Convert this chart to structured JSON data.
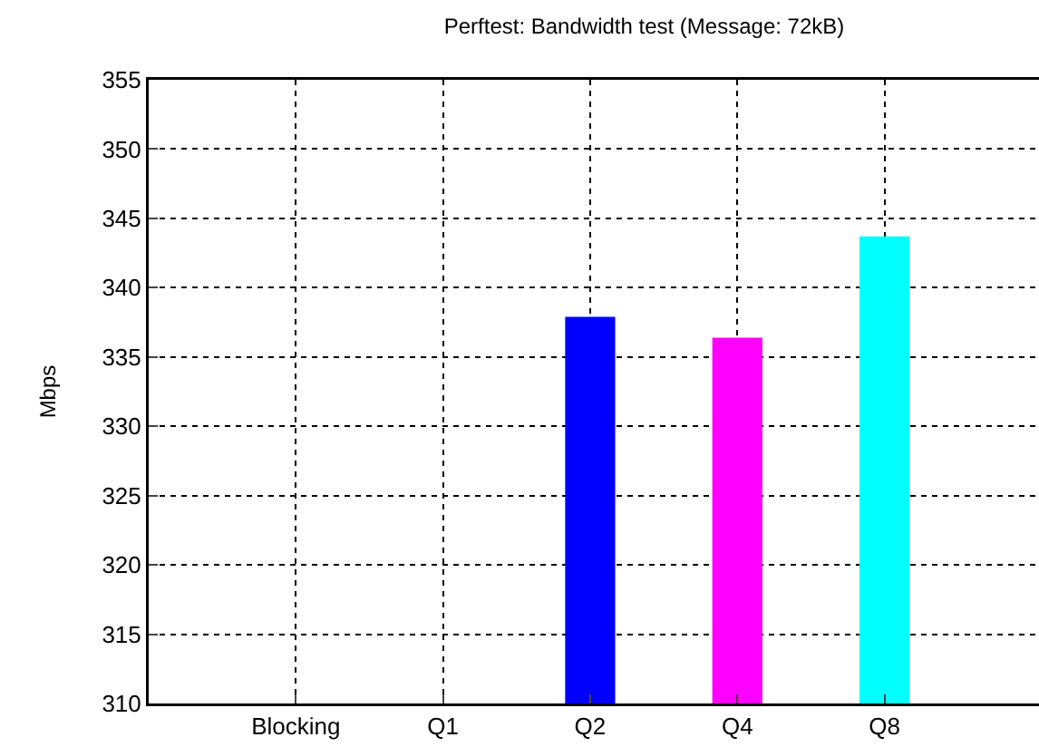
{
  "chart_data": {
    "type": "bar",
    "title": "Perftest: Bandwidth test (Message: 72kB)",
    "ylabel": "Mbps",
    "categories": [
      "Blocking",
      "Q1",
      "Q2",
      "Q4",
      "Q8"
    ],
    "values": [
      null,
      null,
      337.9,
      336.4,
      343.7
    ],
    "colors": [
      "#0000ff",
      "#0000ff",
      "#0000ff",
      "#ff00ff",
      "#00ffff"
    ],
    "ylim": [
      310,
      355
    ],
    "yticks": [
      310,
      315,
      320,
      325,
      330,
      335,
      340,
      345,
      350,
      355
    ],
    "grid": true
  }
}
